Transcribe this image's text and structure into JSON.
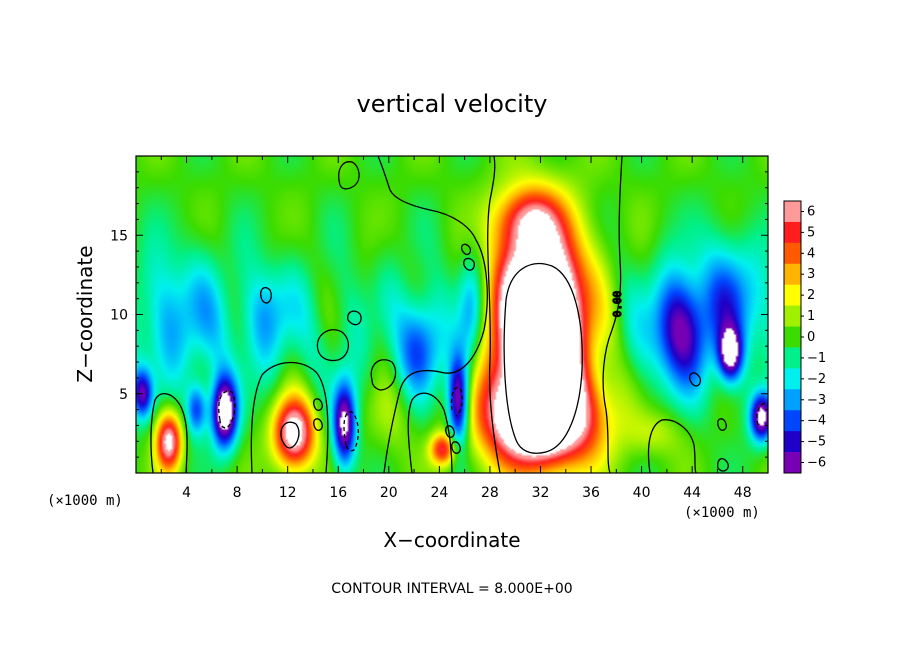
{
  "chart_data": {
    "type": "heatmap",
    "title": "vertical velocity",
    "xlabel": "X−coordinate",
    "ylabel": "Z−coordinate",
    "x_unit": "(×1000 m)",
    "y_unit": "(×1000 m)",
    "xlim": [
      0,
      50
    ],
    "ylim": [
      0,
      20
    ],
    "x_ticks": [
      4,
      8,
      12,
      16,
      20,
      24,
      28,
      32,
      36,
      40,
      44,
      48
    ],
    "x_tick_labels": [
      "4",
      "8",
      "12",
      "16",
      "20",
      "24",
      "28",
      "32",
      "36",
      "40",
      "44",
      "48"
    ],
    "y_ticks": [
      5,
      10,
      15
    ],
    "y_tick_labels": [
      "5",
      "10",
      "15"
    ],
    "colorbar": {
      "levels": [
        6,
        5,
        4,
        3,
        2,
        1,
        0,
        -1,
        -2,
        -3,
        -4,
        -5,
        -6
      ],
      "labels": [
        "6",
        "5",
        "4",
        "3",
        "2",
        "1",
        "0",
        "−1",
        "−2",
        "−3",
        "−4",
        "−5",
        "−6"
      ],
      "colors": [
        "#ff9a9a",
        "#ff1e1e",
        "#ff5a00",
        "#ffb400",
        "#ffff00",
        "#a0f000",
        "#3cdc00",
        "#00f08c",
        "#00f0f0",
        "#00a0ff",
        "#0046ff",
        "#1e00c8",
        "#7800b4"
      ]
    },
    "contour_interval": "CONTOUR INTERVAL = 8.000E+00",
    "contour_label": "0.00",
    "features": [
      {
        "x": 32,
        "z": 9.5,
        "w": 16,
        "kind": "updraft core",
        "sx": 3.5,
        "sz": 5.5
      },
      {
        "x": 32,
        "z": 3.5,
        "w": 10,
        "kind": "updraft base",
        "sx": 4.5,
        "sz": 3.0
      },
      {
        "x": 31,
        "z": 16,
        "w": 4,
        "kind": "updraft top",
        "sx": 2.5,
        "sz": 2.0
      },
      {
        "x": 12.5,
        "z": 2.5,
        "w": 8,
        "kind": "updraft",
        "sx": 1.6,
        "sz": 2.2
      },
      {
        "x": 2.6,
        "z": 2.0,
        "w": 7,
        "kind": "updraft",
        "sx": 1.0,
        "sz": 1.8
      },
      {
        "x": 24.3,
        "z": 1.5,
        "w": 5,
        "kind": "updraft",
        "sx": 1.0,
        "sz": 1.0
      },
      {
        "x": 7.0,
        "z": 3.8,
        "w": -8,
        "kind": "downdraft",
        "sx": 1.0,
        "sz": 2.2
      },
      {
        "x": 4.8,
        "z": 4.0,
        "w": -4,
        "kind": "downdraft",
        "sx": 0.8,
        "sz": 1.6
      },
      {
        "x": 16.5,
        "z": 3.0,
        "w": -7,
        "kind": "downdraft",
        "sx": 0.9,
        "sz": 2.6
      },
      {
        "x": 25.5,
        "z": 4.5,
        "w": -7,
        "kind": "downdraft",
        "sx": 0.8,
        "sz": 2.8
      },
      {
        "x": 22.5,
        "z": 8.0,
        "w": -3.5,
        "kind": "downdraft",
        "sx": 1.6,
        "sz": 3.0
      },
      {
        "x": 26.5,
        "z": 10.0,
        "w": -3,
        "kind": "downdraft",
        "sx": 1.0,
        "sz": 3.5
      },
      {
        "x": 43.0,
        "z": 9.0,
        "w": -5,
        "kind": "downdraft",
        "sx": 2.2,
        "sz": 3.5
      },
      {
        "x": 47.0,
        "z": 7.5,
        "w": -6,
        "kind": "downdraft",
        "sx": 0.9,
        "sz": 1.6
      },
      {
        "x": 49.5,
        "z": 3.5,
        "w": -7,
        "kind": "downdraft",
        "sx": 0.9,
        "sz": 1.5
      },
      {
        "x": 47.0,
        "z": 11.0,
        "w": -3,
        "kind": "downdraft",
        "sx": 2.5,
        "sz": 4.0
      },
      {
        "x": 3.5,
        "z": 10.0,
        "w": -2,
        "kind": "downdraft",
        "sx": 3.5,
        "sz": 4.0
      },
      {
        "x": 0.5,
        "z": 5.0,
        "w": -5,
        "kind": "downdraft",
        "sx": 0.8,
        "sz": 1.5
      },
      {
        "x": 10.5,
        "z": 10.0,
        "w": -2,
        "kind": "downdraft",
        "sx": 2.0,
        "sz": 3.0
      },
      {
        "x": 41.0,
        "z": 2.5,
        "w": 1.5,
        "kind": "updraft",
        "sx": 2.0,
        "sz": 1.5
      },
      {
        "x": 20.0,
        "z": 3.5,
        "w": 1.0,
        "kind": "updraft",
        "sx": 2.0,
        "sz": 2.5
      }
    ]
  }
}
